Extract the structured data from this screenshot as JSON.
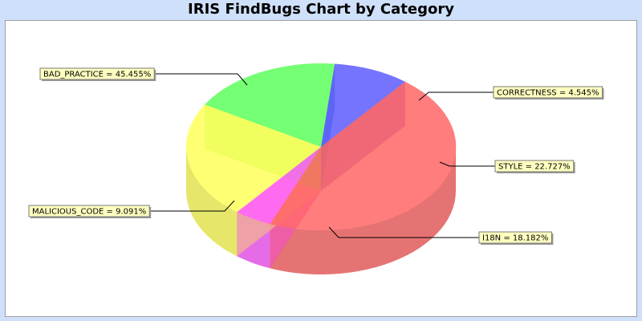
{
  "chart_data": {
    "type": "pie",
    "title": "IRIS FindBugs Chart by Category",
    "slices": [
      {
        "name": "BAD_PRACTICE",
        "value": 45.455,
        "label": "BAD_PRACTICE = 45.455%",
        "color": "#ff6060"
      },
      {
        "name": "CORRECTNESS",
        "value": 4.545,
        "label": "CORRECTNESS = 4.545%",
        "color": "#ff55ff"
      },
      {
        "name": "STYLE",
        "value": 22.727,
        "label": "STYLE = 22.727%",
        "color": "#ffff55"
      },
      {
        "name": "I18N",
        "value": 18.182,
        "label": "I18N = 18.182%",
        "color": "#55ff55"
      },
      {
        "name": "MALICIOUS_CODE",
        "value": 9.091,
        "label": "MALICIOUS_CODE = 9.091%",
        "color": "#5555ff"
      }
    ],
    "label_background": "#ffffc0",
    "plot_background": "#ffffff",
    "frame_background": "#cfe0fb",
    "style": "3d"
  }
}
